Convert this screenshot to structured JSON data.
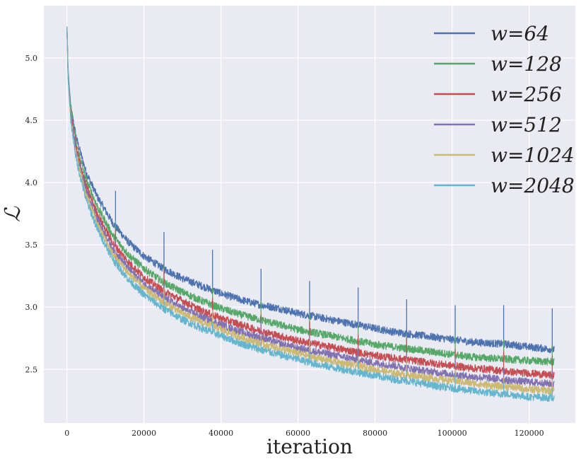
{
  "chart_data": {
    "type": "line",
    "title": "",
    "xlabel": "iteration",
    "ylabel": "ℒ",
    "xlim": [
      -6000,
      132000
    ],
    "ylim": [
      2.07,
      5.42
    ],
    "x_ticks": [
      0,
      20000,
      40000,
      60000,
      80000,
      100000,
      120000
    ],
    "y_ticks": [
      2.5,
      3.0,
      3.5,
      4.0,
      4.5,
      5.0
    ],
    "x_tick_labels": [
      "0",
      "20000",
      "40000",
      "60000",
      "80000",
      "100000",
      "120000"
    ],
    "y_tick_labels": [
      "2.5",
      "3.0",
      "3.5",
      "4.0",
      "4.5",
      "5.0"
    ],
    "grid": true,
    "background": "#eaeaf2",
    "legend_position": "top-right",
    "spikes_at": [
      12600,
      25200,
      37800,
      50400,
      63000,
      75600,
      88200,
      100800,
      113400,
      126000
    ],
    "series": [
      {
        "name": "w=64",
        "color": "#4c72b0",
        "x": [
          0,
          300,
          1000,
          2500,
          5000,
          8000,
          12000,
          16000,
          20000,
          25000,
          30000,
          35000,
          40000,
          45000,
          50000,
          55000,
          60000,
          65000,
          70000,
          75000,
          80000,
          85000,
          90000,
          95000,
          100000,
          105000,
          110000,
          115000,
          120000,
          126500
        ],
        "y": [
          5.25,
          4.9,
          4.6,
          4.35,
          4.08,
          3.88,
          3.67,
          3.52,
          3.41,
          3.31,
          3.23,
          3.17,
          3.11,
          3.06,
          3.02,
          2.99,
          2.95,
          2.92,
          2.89,
          2.86,
          2.83,
          2.8,
          2.78,
          2.76,
          2.74,
          2.72,
          2.71,
          2.7,
          2.68,
          2.66
        ],
        "noise": 0.03,
        "spike_height": 0.3
      },
      {
        "name": "w=128",
        "color": "#55a868",
        "x": [
          0,
          300,
          1000,
          2500,
          5000,
          8000,
          12000,
          16000,
          20000,
          25000,
          30000,
          35000,
          40000,
          45000,
          50000,
          55000,
          60000,
          65000,
          70000,
          75000,
          80000,
          85000,
          90000,
          95000,
          100000,
          105000,
          110000,
          115000,
          120000,
          126500
        ],
        "y": [
          5.25,
          4.88,
          4.58,
          4.3,
          4.02,
          3.8,
          3.57,
          3.42,
          3.31,
          3.2,
          3.12,
          3.05,
          2.99,
          2.94,
          2.9,
          2.86,
          2.82,
          2.79,
          2.76,
          2.73,
          2.7,
          2.68,
          2.66,
          2.64,
          2.62,
          2.6,
          2.59,
          2.58,
          2.57,
          2.56
        ],
        "noise": 0.03,
        "spike_height": 0.15
      },
      {
        "name": "w=256",
        "color": "#c44e52",
        "x": [
          0,
          300,
          1000,
          2500,
          5000,
          8000,
          12000,
          16000,
          20000,
          25000,
          30000,
          35000,
          40000,
          45000,
          50000,
          55000,
          60000,
          65000,
          70000,
          75000,
          80000,
          85000,
          90000,
          95000,
          100000,
          105000,
          110000,
          115000,
          120000,
          126500
        ],
        "y": [
          5.25,
          4.86,
          4.55,
          4.26,
          3.97,
          3.74,
          3.51,
          3.36,
          3.24,
          3.13,
          3.05,
          2.97,
          2.91,
          2.86,
          2.81,
          2.77,
          2.73,
          2.7,
          2.67,
          2.64,
          2.61,
          2.59,
          2.57,
          2.55,
          2.53,
          2.51,
          2.5,
          2.48,
          2.47,
          2.45
        ],
        "noise": 0.03,
        "spike_height": 0.15
      },
      {
        "name": "w=512",
        "color": "#8172b2",
        "x": [
          0,
          300,
          1000,
          2500,
          5000,
          8000,
          12000,
          16000,
          20000,
          25000,
          30000,
          35000,
          40000,
          45000,
          50000,
          55000,
          60000,
          65000,
          70000,
          75000,
          80000,
          85000,
          90000,
          95000,
          100000,
          105000,
          110000,
          115000,
          120000,
          126500
        ],
        "y": [
          5.25,
          4.85,
          4.53,
          4.23,
          3.93,
          3.7,
          3.46,
          3.31,
          3.19,
          3.08,
          2.99,
          2.92,
          2.86,
          2.8,
          2.76,
          2.71,
          2.67,
          2.64,
          2.61,
          2.58,
          2.55,
          2.53,
          2.5,
          2.48,
          2.46,
          2.44,
          2.43,
          2.41,
          2.4,
          2.38
        ],
        "noise": 0.03,
        "spike_height": 0.12
      },
      {
        "name": "w=1024",
        "color": "#ccb974",
        "x": [
          0,
          300,
          1000,
          2500,
          5000,
          8000,
          12000,
          16000,
          20000,
          25000,
          30000,
          35000,
          40000,
          45000,
          50000,
          55000,
          60000,
          65000,
          70000,
          75000,
          80000,
          85000,
          90000,
          95000,
          100000,
          105000,
          110000,
          115000,
          120000,
          126500
        ],
        "y": [
          5.25,
          4.84,
          4.51,
          4.2,
          3.9,
          3.66,
          3.42,
          3.27,
          3.15,
          3.04,
          2.95,
          2.88,
          2.82,
          2.76,
          2.71,
          2.67,
          2.63,
          2.59,
          2.56,
          2.53,
          2.5,
          2.47,
          2.45,
          2.43,
          2.41,
          2.39,
          2.37,
          2.36,
          2.34,
          2.33
        ],
        "noise": 0.03,
        "spike_height": 0.1
      },
      {
        "name": "w=2048",
        "color": "#64b5cd",
        "x": [
          0,
          300,
          1000,
          2500,
          5000,
          8000,
          12000,
          16000,
          20000,
          25000,
          30000,
          35000,
          40000,
          45000,
          50000,
          55000,
          60000,
          65000,
          70000,
          75000,
          80000,
          85000,
          90000,
          95000,
          100000,
          105000,
          110000,
          115000,
          120000,
          126500
        ],
        "y": [
          5.25,
          4.83,
          4.5,
          4.17,
          3.86,
          3.62,
          3.38,
          3.22,
          3.1,
          2.99,
          2.9,
          2.83,
          2.77,
          2.71,
          2.66,
          2.62,
          2.58,
          2.54,
          2.51,
          2.48,
          2.45,
          2.42,
          2.4,
          2.37,
          2.35,
          2.33,
          2.31,
          2.3,
          2.28,
          2.27
        ],
        "noise": 0.03,
        "spike_height": 0.08
      }
    ]
  }
}
